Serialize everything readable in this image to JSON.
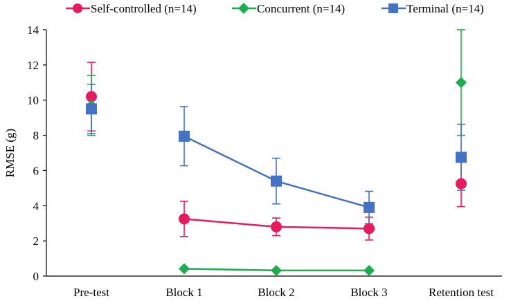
{
  "chart_data": {
    "type": "line",
    "title": "",
    "xlabel": "",
    "ylabel": "RMSE (g)",
    "ylim": [
      0,
      14
    ],
    "yticks": [
      0,
      2,
      4,
      6,
      8,
      10,
      12,
      14
    ],
    "grid": false,
    "legend_position": "top",
    "categories": [
      "Pre-test",
      "Block 1",
      "Block 2",
      "Block 3",
      "Retention test"
    ],
    "series": [
      {
        "name": "Self-controlled (n=14)",
        "color": "#e8195d",
        "marker": "circle",
        "values": [
          10.2,
          3.25,
          2.8,
          2.7,
          5.25
        ],
        "errors": [
          1.95,
          1.0,
          0.5,
          0.65,
          1.3
        ],
        "connected": [
          false,
          true,
          true,
          true,
          false
        ]
      },
      {
        "name": "Concurrent (n=14)",
        "color": "#1cae4f",
        "marker": "diamond",
        "values": [
          9.7,
          0.42,
          0.32,
          0.32,
          11.0
        ],
        "errors": [
          1.7,
          0,
          0,
          0,
          3.0
        ],
        "connected": [
          false,
          true,
          true,
          true,
          false
        ]
      },
      {
        "name": "Terminal (n=14)",
        "color": "#4472c4",
        "marker": "square",
        "values": [
          9.5,
          7.95,
          5.4,
          3.9,
          6.75
        ],
        "errors": [
          1.4,
          1.68,
          1.3,
          0.92,
          1.88
        ],
        "connected": [
          false,
          true,
          true,
          true,
          false
        ]
      }
    ]
  }
}
